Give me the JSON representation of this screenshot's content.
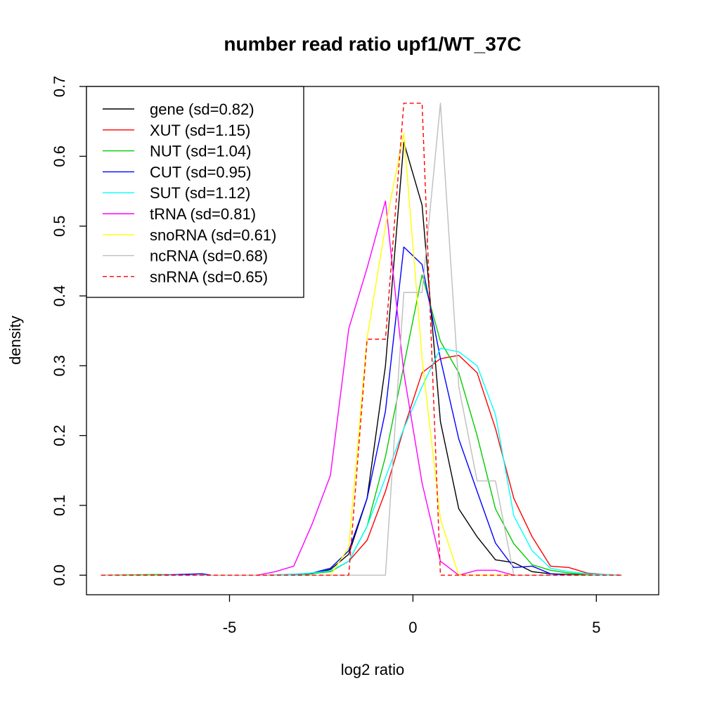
{
  "chart_data": {
    "type": "line",
    "title": "number read ratio upf1/WT_37C",
    "xlabel": "log2 ratio",
    "ylabel": "density",
    "xlim": [
      -8.9,
      6.7
    ],
    "ylim": [
      -0.028,
      0.7
    ],
    "x_ticks": [
      -5,
      0,
      5
    ],
    "x_tick_labels": [
      "-5",
      "0",
      "5"
    ],
    "y_ticks": [
      0.0,
      0.1,
      0.2,
      0.3,
      0.4,
      0.5,
      0.6,
      0.7
    ],
    "y_tick_labels": [
      "0.0",
      "0.1",
      "0.2",
      "0.3",
      "0.4",
      "0.5",
      "0.6",
      "0.7"
    ],
    "grid": false,
    "legend_position": "top-left",
    "series": [
      {
        "name": "gene (sd=0.82)",
        "color": "#000000",
        "dash": "solid",
        "x": [
          -8.5,
          -7.0,
          -5.5,
          -4.5,
          -3.5,
          -2.75,
          -2.25,
          -1.75,
          -1.25,
          -0.75,
          -0.25,
          0.25,
          0.75,
          1.25,
          1.75,
          2.25,
          2.75,
          3.25,
          3.75,
          4.25,
          5.0,
          5.7
        ],
        "y": [
          0,
          0,
          0,
          0,
          0,
          0.002,
          0.008,
          0.03,
          0.11,
          0.3,
          0.62,
          0.53,
          0.22,
          0.095,
          0.055,
          0.022,
          0.018,
          0.005,
          0.002,
          0.001,
          0,
          0
        ]
      },
      {
        "name": "XUT (sd=1.15)",
        "color": "#ff0000",
        "dash": "solid",
        "x": [
          -8.5,
          -7.0,
          -6.0,
          -5.0,
          -4.0,
          -3.0,
          -2.25,
          -1.75,
          -1.25,
          -0.75,
          -0.25,
          0.25,
          0.75,
          1.25,
          1.75,
          2.25,
          2.75,
          3.25,
          3.75,
          4.25,
          4.75,
          5.25,
          5.7
        ],
        "y": [
          0,
          0,
          0,
          0,
          0,
          0.002,
          0.005,
          0.02,
          0.05,
          0.12,
          0.21,
          0.29,
          0.31,
          0.315,
          0.29,
          0.21,
          0.11,
          0.055,
          0.013,
          0.011,
          0.003,
          0.001,
          0
        ]
      },
      {
        "name": "NUT (sd=1.04)",
        "color": "#00cc00",
        "dash": "solid",
        "x": [
          -8.5,
          -7.0,
          -6.0,
          -5.0,
          -4.0,
          -3.0,
          -2.25,
          -1.75,
          -1.25,
          -0.75,
          -0.25,
          0.25,
          0.75,
          1.25,
          1.75,
          2.25,
          2.75,
          3.25,
          3.75,
          4.25,
          4.75,
          5.25,
          5.7
        ],
        "y": [
          0,
          0.001,
          0,
          0,
          0,
          0.001,
          0.005,
          0.02,
          0.07,
          0.17,
          0.3,
          0.43,
          0.335,
          0.29,
          0.2,
          0.095,
          0.045,
          0.015,
          0.007,
          0.003,
          0.001,
          0,
          0
        ]
      },
      {
        "name": "CUT (sd=0.95)",
        "color": "#0000ff",
        "dash": "solid",
        "x": [
          -8.5,
          -7.0,
          -5.75,
          -5.5,
          -4.5,
          -3.5,
          -2.75,
          -2.25,
          -1.75,
          -1.25,
          -0.75,
          -0.25,
          0.25,
          0.75,
          1.25,
          1.75,
          2.25,
          2.75,
          3.25,
          3.75,
          4.25,
          5.0,
          5.7
        ],
        "y": [
          0,
          0,
          0.002,
          0,
          0,
          0,
          0.003,
          0.01,
          0.035,
          0.11,
          0.235,
          0.47,
          0.445,
          0.31,
          0.195,
          0.12,
          0.046,
          0.011,
          0.013,
          0.002,
          0,
          0,
          0
        ]
      },
      {
        "name": "SUT (sd=1.12)",
        "color": "#00ffff",
        "dash": "solid",
        "x": [
          -8.5,
          -7.0,
          -6.0,
          -5.0,
          -4.0,
          -3.0,
          -2.25,
          -1.75,
          -1.25,
          -0.75,
          -0.25,
          0.25,
          0.75,
          1.25,
          1.75,
          2.25,
          2.75,
          3.25,
          3.75,
          4.25,
          4.75,
          5.25,
          5.7
        ],
        "y": [
          0,
          0,
          0,
          0,
          0,
          0.002,
          0.006,
          0.02,
          0.07,
          0.14,
          0.21,
          0.27,
          0.325,
          0.32,
          0.3,
          0.23,
          0.085,
          0.035,
          0.01,
          0.005,
          0.002,
          0.001,
          0
        ]
      },
      {
        "name": "tRNA (sd=0.81)",
        "color": "#ff00ff",
        "dash": "solid",
        "x": [
          -8.5,
          -7.0,
          -6.0,
          -5.0,
          -4.25,
          -3.75,
          -3.25,
          -2.75,
          -2.25,
          -1.75,
          -1.25,
          -0.75,
          -0.25,
          0.25,
          0.75,
          1.25,
          1.75,
          2.25,
          2.75,
          3.25,
          4.0,
          5.0,
          5.7
        ],
        "y": [
          0,
          0,
          0,
          0,
          0,
          0.005,
          0.013,
          0.073,
          0.143,
          0.353,
          0.44,
          0.536,
          0.29,
          0.132,
          0.02,
          0,
          0.007,
          0.007,
          0,
          0,
          0,
          0,
          0
        ]
      },
      {
        "name": "snoRNA (sd=0.61)",
        "color": "#ffff00",
        "dash": "solid",
        "x": [
          -8.5,
          -7.0,
          -5.0,
          -3.0,
          -2.25,
          -1.75,
          -1.25,
          -0.75,
          -0.25,
          0.25,
          0.75,
          1.25,
          1.75,
          2.5,
          3.5,
          4.5,
          5.7
        ],
        "y": [
          0,
          0,
          0,
          0,
          0,
          0.04,
          0.34,
          0.5,
          0.633,
          0.31,
          0.08,
          0,
          0,
          0,
          0,
          0,
          0
        ]
      },
      {
        "name": "ncRNA (sd=0.68)",
        "color": "#bebebe",
        "dash": "solid",
        "x": [
          -8.5,
          -7.0,
          -5.0,
          -3.0,
          -2.0,
          -0.75,
          -0.25,
          0.25,
          0.75,
          1.25,
          1.75,
          2.25,
          2.75,
          3.25,
          4.0,
          5.0,
          5.7
        ],
        "y": [
          0,
          0,
          0,
          0,
          0,
          0,
          0.405,
          0.405,
          0.676,
          0.27,
          0.135,
          0.135,
          0,
          0,
          0,
          0,
          0
        ]
      },
      {
        "name": "snRNA (sd=0.65)",
        "color": "#ff0000",
        "dash": "dashed",
        "x": [
          -8.5,
          -7.0,
          -5.0,
          -3.0,
          -1.75,
          -1.25,
          -0.75,
          -0.25,
          0.25,
          0.75,
          1.25,
          1.75,
          2.25,
          3.0,
          4.0,
          5.0,
          5.7
        ],
        "y": [
          0,
          0,
          0,
          0,
          0,
          0.338,
          0.338,
          0.676,
          0.676,
          0,
          0,
          0,
          0,
          0,
          0,
          0,
          0
        ]
      }
    ]
  }
}
